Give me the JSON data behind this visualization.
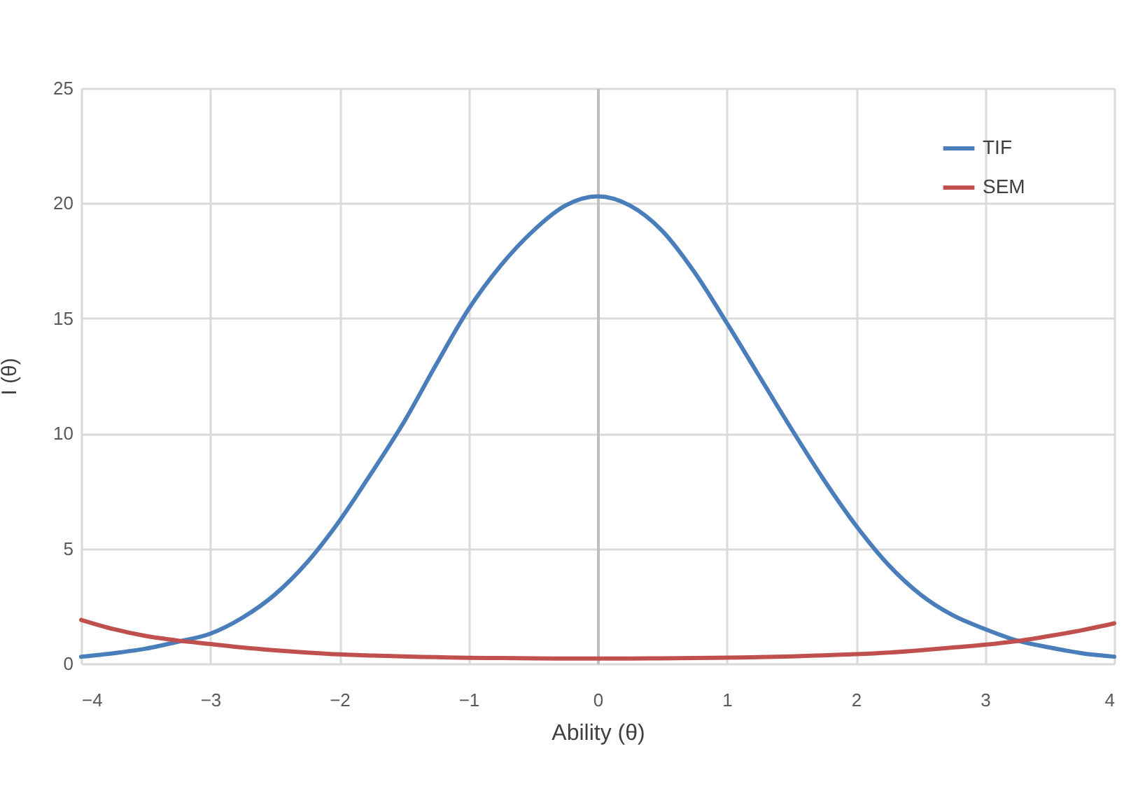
{
  "chart_data": {
    "type": "line",
    "xlabel": "Ability (θ)",
    "ylabel": "I (θ)",
    "x": [
      -4,
      -3.75,
      -3.5,
      -3.25,
      -3,
      -2.75,
      -2.5,
      -2.25,
      -2,
      -1.75,
      -1.5,
      -1.25,
      -1,
      -0.75,
      -0.5,
      -0.25,
      0,
      0.25,
      0.5,
      0.75,
      1,
      1.25,
      1.5,
      1.75,
      2,
      2.25,
      2.5,
      2.75,
      3,
      3.25,
      3.5,
      3.75,
      4
    ],
    "series": [
      {
        "name": "TIF",
        "color": "#4a7ebb",
        "values": [
          0.3,
          0.45,
          0.65,
          0.95,
          1.3,
          2.0,
          3.0,
          4.4,
          6.2,
          8.3,
          10.5,
          13.0,
          15.4,
          17.3,
          18.8,
          19.9,
          20.3,
          19.9,
          18.8,
          17.0,
          14.8,
          12.5,
          10.2,
          8.0,
          6.0,
          4.3,
          3.0,
          2.1,
          1.5,
          1.0,
          0.7,
          0.45,
          0.3
        ]
      },
      {
        "name": "SEM",
        "color": "#c0504d",
        "values": [
          1.9,
          1.5,
          1.2,
          1.0,
          0.85,
          0.7,
          0.58,
          0.48,
          0.4,
          0.35,
          0.31,
          0.28,
          0.25,
          0.24,
          0.23,
          0.22,
          0.22,
          0.22,
          0.23,
          0.24,
          0.26,
          0.28,
          0.31,
          0.36,
          0.41,
          0.48,
          0.58,
          0.7,
          0.82,
          0.98,
          1.2,
          1.45,
          1.75
        ]
      }
    ],
    "xlim": [
      -4,
      4
    ],
    "xticks": [
      -4,
      -3,
      -2,
      -1,
      0,
      1,
      2,
      3,
      4
    ],
    "ylim": [
      0,
      25
    ],
    "yticks": [
      0,
      5,
      10,
      15,
      20,
      25
    ],
    "grid": true,
    "legend": "top right"
  }
}
